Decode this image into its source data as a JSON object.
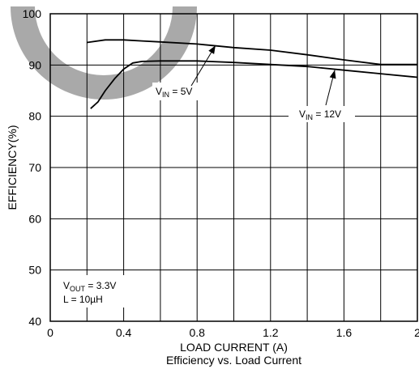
{
  "chart_data": {
    "type": "line",
    "title": "Efficiency vs. Load Current",
    "xlabel": "LOAD CURRENT (A)",
    "ylabel": "EFFICIENCY(%)",
    "xlim": [
      0,
      2
    ],
    "ylim": [
      40,
      100
    ],
    "x_ticks": [
      "0",
      "0.4",
      "0.8",
      "1.2",
      "1.6",
      "2"
    ],
    "y_ticks": [
      "40",
      "50",
      "60",
      "70",
      "80",
      "90",
      "100"
    ],
    "grid": true,
    "series": [
      {
        "name": "V_IN = 5V",
        "label_main": "V",
        "label_sub": "IN",
        "label_rest": " = 5V",
        "x": [
          0.2,
          0.3,
          0.4,
          0.5,
          0.6,
          0.8,
          1.0,
          1.2,
          1.4,
          1.6,
          1.8,
          2.0
        ],
        "y": [
          94.4,
          94.9,
          94.9,
          94.7,
          94.5,
          94.1,
          93.4,
          92.9,
          92.0,
          91.0,
          90.1,
          90.1
        ]
      },
      {
        "name": "V_IN = 12V",
        "label_main": "V",
        "label_sub": "IN",
        "label_rest": " = 12V",
        "x": [
          0.22,
          0.26,
          0.3,
          0.35,
          0.4,
          0.45,
          0.5,
          0.6,
          0.8,
          1.0,
          1.2,
          1.4,
          1.6,
          1.8,
          2.0
        ],
        "y": [
          81.5,
          82.8,
          85.0,
          87.3,
          89.2,
          90.4,
          90.7,
          90.8,
          90.8,
          90.5,
          90.1,
          89.7,
          89.0,
          88.3,
          87.6
        ]
      }
    ],
    "conditions": [
      {
        "main": "V",
        "sub": "OUT",
        "rest": " = 3.3V"
      },
      {
        "main": "L = 10µH",
        "sub": "",
        "rest": ""
      }
    ]
  }
}
